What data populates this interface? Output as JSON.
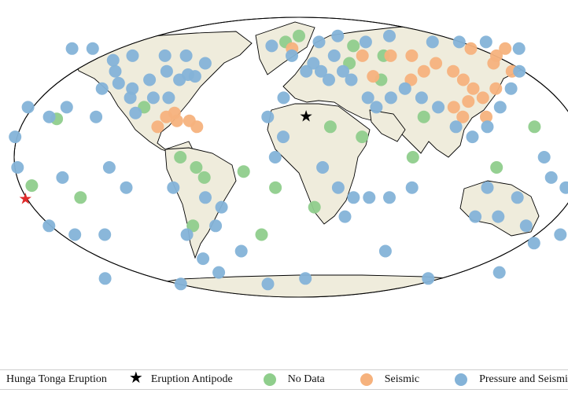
{
  "colors": {
    "land": "#efecdc",
    "ocean": "#ffffff",
    "coast": "#000000",
    "no_data": "#8fce8c",
    "seismic": "#f6b27d",
    "pressure_seismic": "#84b3d8",
    "eruption": "#e02b2b",
    "antipode": "#000000"
  },
  "legend": {
    "items": [
      {
        "label": "Hunga Tonga Eruption",
        "symbol": "star",
        "color": "#e02b2b"
      },
      {
        "label": "Eruption Antipode",
        "symbol": "star",
        "color": "#000000"
      },
      {
        "label": "No Data",
        "symbol": "dot",
        "color": "#8fce8c"
      },
      {
        "label": "Seismic",
        "symbol": "dot",
        "color": "#f6b27d"
      },
      {
        "label": "Pressure and Seismic",
        "symbol": "dot",
        "color": "#84b3d8"
      }
    ]
  },
  "events": {
    "eruption": {
      "name": "Hunga Tonga Eruption",
      "lon": -175.4,
      "lat": -20.5
    },
    "antipode": {
      "name": "Eruption Antipode",
      "lon": 4.6,
      "lat": 20.5
    }
  },
  "stations": {
    "no_data": [
      [
        -155,
        19
      ],
      [
        -170,
        -14
      ],
      [
        -140,
        -20
      ],
      [
        -100,
        25
      ],
      [
        -65,
        -5
      ],
      [
        -70,
        -35
      ],
      [
        -60,
        -10
      ],
      [
        -75,
        0
      ],
      [
        -35,
        -7
      ],
      [
        -25,
        -40
      ],
      [
        -15,
        -15
      ],
      [
        10,
        -25
      ],
      [
        20,
        15
      ],
      [
        40,
        10
      ],
      [
        72,
        0
      ],
      [
        55,
        40
      ],
      [
        60,
        55
      ],
      [
        80,
        20
      ],
      [
        40,
        62
      ],
      [
        35,
        50
      ],
      [
        150,
        15
      ],
      [
        125,
        -5
      ],
      [
        0,
        70
      ],
      [
        -10,
        65
      ]
    ],
    "seismic": [
      [
        -85,
        20
      ],
      [
        -80,
        22
      ],
      [
        -78,
        18
      ],
      [
        -70,
        18
      ],
      [
        -65,
        15
      ],
      [
        -90,
        15
      ],
      [
        -5,
        60
      ],
      [
        45,
        55
      ],
      [
        65,
        55
      ],
      [
        80,
        55
      ],
      [
        95,
        50
      ],
      [
        105,
        45
      ],
      [
        110,
        40
      ],
      [
        115,
        35
      ],
      [
        120,
        30
      ],
      [
        110,
        28
      ],
      [
        100,
        25
      ],
      [
        105,
        20
      ],
      [
        120,
        20
      ],
      [
        130,
        35
      ],
      [
        135,
        50
      ],
      [
        140,
        55
      ],
      [
        145,
        45
      ],
      [
        125,
        60
      ],
      [
        150,
        60
      ],
      [
        50,
        42
      ],
      [
        85,
        45
      ],
      [
        75,
        40
      ]
    ],
    "pressure_seismic": [
      [
        -165,
        60
      ],
      [
        -150,
        60
      ],
      [
        -130,
        52
      ],
      [
        -125,
        45
      ],
      [
        -120,
        38
      ],
      [
        -110,
        35
      ],
      [
        -100,
        40
      ],
      [
        -90,
        45
      ],
      [
        -80,
        40
      ],
      [
        -75,
        43
      ],
      [
        -70,
        42
      ],
      [
        -85,
        30
      ],
      [
        -95,
        30
      ],
      [
        -105,
        22
      ],
      [
        -110,
        30
      ],
      [
        -118,
        55
      ],
      [
        -95,
        55
      ],
      [
        -80,
        55
      ],
      [
        -65,
        50
      ],
      [
        -130,
        35
      ],
      [
        -150,
        -10
      ],
      [
        -165,
        -35
      ],
      [
        -150,
        -40
      ],
      [
        -130,
        -40
      ],
      [
        -120,
        -5
      ],
      [
        -110,
        -15
      ],
      [
        -80,
        -15
      ],
      [
        -75,
        -40
      ],
      [
        -68,
        -55
      ],
      [
        -55,
        -35
      ],
      [
        -50,
        -25
      ],
      [
        -40,
        -50
      ],
      [
        -60,
        -65
      ],
      [
        -25,
        -75
      ],
      [
        -10,
        30
      ],
      [
        5,
        45
      ],
      [
        15,
        45
      ],
      [
        20,
        40
      ],
      [
        30,
        45
      ],
      [
        25,
        55
      ],
      [
        35,
        40
      ],
      [
        45,
        30
      ],
      [
        50,
        25
      ],
      [
        60,
        30
      ],
      [
        70,
        35
      ],
      [
        80,
        30
      ],
      [
        90,
        25
      ],
      [
        100,
        15
      ],
      [
        110,
        10
      ],
      [
        120,
        15
      ],
      [
        130,
        25
      ],
      [
        140,
        35
      ],
      [
        150,
        45
      ],
      [
        155,
        0
      ],
      [
        160,
        -10
      ],
      [
        170,
        -15
      ],
      [
        175,
        -40
      ],
      [
        160,
        -45
      ],
      [
        150,
        -35
      ],
      [
        130,
        -30
      ],
      [
        115,
        -30
      ],
      [
        140,
        -20
      ],
      [
        120,
        -15
      ],
      [
        -20,
        62
      ],
      [
        15,
        65
      ],
      [
        30,
        70
      ],
      [
        50,
        65
      ],
      [
        70,
        70
      ],
      [
        100,
        65
      ],
      [
        120,
        65
      ],
      [
        140,
        65
      ],
      [
        160,
        60
      ],
      [
        -5,
        55
      ],
      [
        10,
        50
      ],
      [
        -20,
        20
      ],
      [
        -10,
        10
      ],
      [
        -15,
        0
      ],
      [
        15,
        -5
      ],
      [
        25,
        -15
      ],
      [
        30,
        -30
      ],
      [
        35,
        -20
      ],
      [
        45,
        -20
      ],
      [
        58,
        -20
      ],
      [
        72,
        -15
      ],
      [
        180,
        -25
      ],
      [
        180,
        15
      ],
      [
        -180,
        10
      ],
      [
        -175,
        25
      ],
      [
        -178,
        -5
      ],
      [
        -150,
        25
      ],
      [
        -160,
        20
      ],
      [
        -130,
        20
      ],
      [
        -60,
        -20
      ],
      [
        5,
        -70
      ],
      [
        100,
        -70
      ],
      [
        150,
        -65
      ],
      [
        -150,
        -70
      ],
      [
        60,
        -50
      ],
      [
        -95,
        -75
      ]
    ]
  }
}
